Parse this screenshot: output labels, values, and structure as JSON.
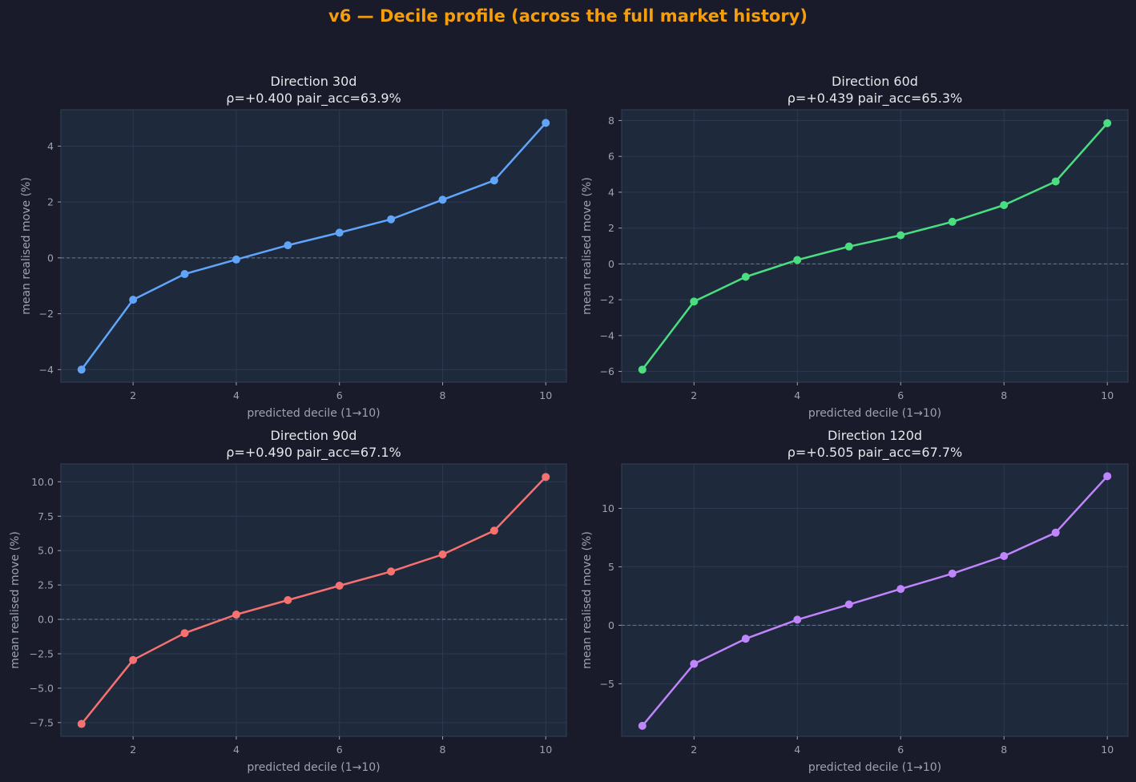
{
  "figure": {
    "title": "v6 — Decile profile (across the full market history)"
  },
  "chart_data": [
    {
      "type": "line",
      "title": "Direction 30d",
      "subtitle": "ρ=+0.400  pair_acc=63.9%",
      "xlabel": "predicted decile (1→10)",
      "ylabel": "mean realised move (%)",
      "color": "#60a5fa",
      "x": [
        1,
        2,
        3,
        4,
        5,
        6,
        7,
        8,
        9,
        10
      ],
      "y": [
        -4.0,
        -1.5,
        -0.58,
        -0.06,
        0.45,
        0.9,
        1.38,
        2.08,
        2.77,
        4.83
      ],
      "xlim": [
        0.6,
        10.4
      ],
      "ylim": [
        -4.45,
        5.3
      ],
      "xticks": [
        2,
        4,
        6,
        8,
        10
      ],
      "yticks": [
        -4,
        -2,
        0,
        2,
        4
      ],
      "ytick_labels": [
        "−4",
        "−2",
        "0",
        "2",
        "4"
      ],
      "grid": true
    },
    {
      "type": "line",
      "title": "Direction 60d",
      "subtitle": "ρ=+0.439  pair_acc=65.3%",
      "xlabel": "predicted decile (1→10)",
      "ylabel": "mean realised move (%)",
      "color": "#4ade80",
      "x": [
        1,
        2,
        3,
        4,
        5,
        6,
        7,
        8,
        9,
        10
      ],
      "y": [
        -5.9,
        -2.1,
        -0.72,
        0.22,
        0.97,
        1.6,
        2.35,
        3.28,
        4.6,
        7.85
      ],
      "xlim": [
        0.6,
        10.4
      ],
      "ylim": [
        -6.6,
        8.6
      ],
      "xticks": [
        2,
        4,
        6,
        8,
        10
      ],
      "yticks": [
        -6,
        -4,
        -2,
        0,
        2,
        4,
        6,
        8
      ],
      "ytick_labels": [
        "−6",
        "−4",
        "−2",
        "0",
        "2",
        "4",
        "6",
        "8"
      ],
      "grid": true
    },
    {
      "type": "line",
      "title": "Direction 90d",
      "subtitle": "ρ=+0.490  pair_acc=67.1%",
      "xlabel": "predicted decile (1→10)",
      "ylabel": "mean realised move (%)",
      "color": "#f87171",
      "x": [
        1,
        2,
        3,
        4,
        5,
        6,
        7,
        8,
        9,
        10
      ],
      "y": [
        -7.6,
        -2.95,
        -1.0,
        0.35,
        1.4,
        2.45,
        3.48,
        4.72,
        6.45,
        10.35
      ],
      "xlim": [
        0.6,
        10.4
      ],
      "ylim": [
        -8.5,
        11.3
      ],
      "xticks": [
        2,
        4,
        6,
        8,
        10
      ],
      "yticks": [
        -7.5,
        -5.0,
        -2.5,
        0.0,
        2.5,
        5.0,
        7.5,
        10.0
      ],
      "ytick_labels": [
        "−7.5",
        "−5.0",
        "−2.5",
        "0.0",
        "2.5",
        "5.0",
        "7.5",
        "10.0"
      ],
      "grid": true
    },
    {
      "type": "line",
      "title": "Direction 120d",
      "subtitle": "ρ=+0.505  pair_acc=67.7%",
      "xlabel": "predicted decile (1→10)",
      "ylabel": "mean realised move (%)",
      "color": "#c084fc",
      "x": [
        1,
        2,
        3,
        4,
        5,
        6,
        7,
        8,
        9,
        10
      ],
      "y": [
        -8.6,
        -3.3,
        -1.15,
        0.48,
        1.78,
        3.1,
        4.42,
        5.92,
        7.92,
        12.75
      ],
      "xlim": [
        0.6,
        10.4
      ],
      "ylim": [
        -9.5,
        13.8
      ],
      "xticks": [
        2,
        4,
        6,
        8,
        10
      ],
      "yticks": [
        -5,
        0,
        5,
        10
      ],
      "ytick_labels": [
        "−5",
        "0",
        "5",
        "10"
      ],
      "grid": true
    }
  ]
}
